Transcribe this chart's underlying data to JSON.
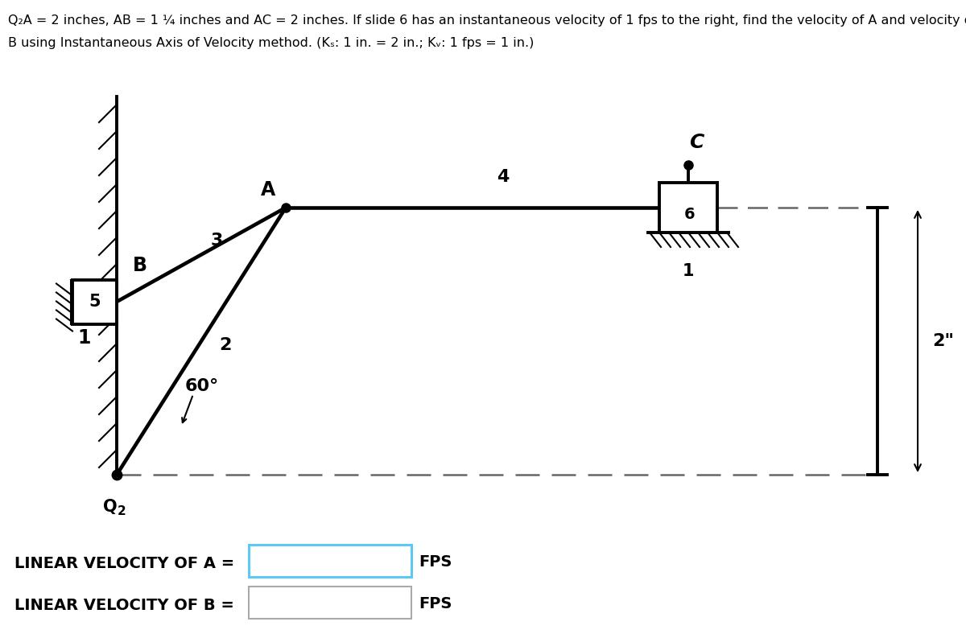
{
  "bg_color": "#ffffff",
  "line_color": "#000000",
  "dashed_color": "#666666",
  "label_A": "A",
  "label_B": "B",
  "label_C": "C",
  "label_Q2": "Q",
  "label_Q2_sub": "2",
  "label_3": "3",
  "label_2": "2",
  "label_4": "4",
  "label_6": "6",
  "label_1": "1",
  "label_60": "60°",
  "label_2inch": "2\"",
  "linear_a_label": "LINEAR VELOCITY OF A =",
  "linear_b_label": "LINEAR VELOCITY OF B =",
  "fps_label": "FPS",
  "title_line1": "Q₂A = 2 inches, AB = 1 ¼ inches and AC = 2 inches. If slide 6 has an instantaneous velocity of 1 fps to the right, find the velocity of A and velocity of block",
  "title_line2": "B using Instantaneous Axis of Velocity method. (Kₛ: 1 in. = 2 in.; Kᵥ: 1 fps = 1 in.)"
}
